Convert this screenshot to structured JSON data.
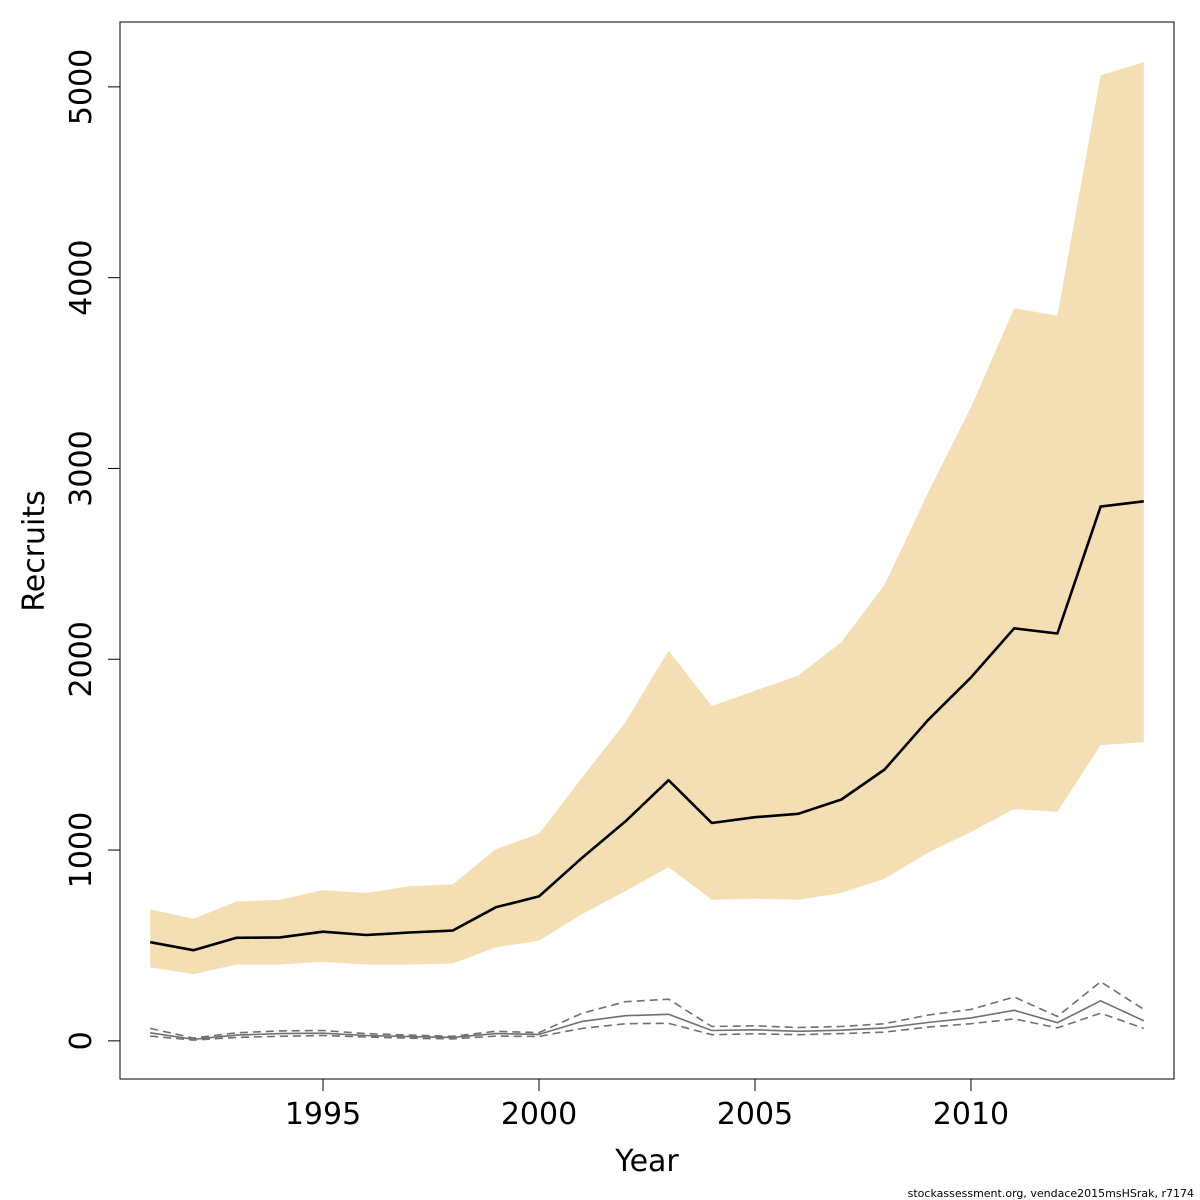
{
  "chart_data": {
    "type": "line",
    "xlabel": "Year",
    "ylabel": "Recruits",
    "xlim": [
      1990.3,
      2014.7
    ],
    "ylim": [
      -200,
      5340
    ],
    "x_ticks": [
      1995,
      2000,
      2005,
      2010
    ],
    "y_ticks": [
      0,
      1000,
      2000,
      3000,
      4000,
      5000
    ],
    "grid": false,
    "legend": "none",
    "x": [
      1991,
      1992,
      1993,
      1994,
      1995,
      1996,
      1997,
      1998,
      1999,
      2000,
      2001,
      2002,
      2003,
      2004,
      2005,
      2006,
      2007,
      2008,
      2009,
      2010,
      2011,
      2012,
      2013,
      2014
    ],
    "band": {
      "color": "#f4deb3",
      "upper": [
        690,
        640,
        730,
        740,
        790,
        775,
        810,
        820,
        1005,
        1085,
        1380,
        1670,
        2045,
        1755,
        1835,
        1915,
        2090,
        2390,
        2870,
        3320,
        3840,
        3800,
        5060,
        5130
      ],
      "lower": [
        385,
        350,
        400,
        400,
        415,
        400,
        400,
        405,
        490,
        525,
        665,
        785,
        910,
        740,
        745,
        740,
        775,
        850,
        985,
        1095,
        1215,
        1200,
        1550,
        1565
      ]
    },
    "series": [
      {
        "style": "solid",
        "color": "#000000",
        "values": [
          517,
          475,
          540,
          542,
          572,
          555,
          568,
          578,
          700,
          757,
          960,
          1150,
          1366,
          1142,
          1172,
          1190,
          1265,
          1422,
          1680,
          1905,
          2162,
          2135,
          2800,
          2828
        ]
      },
      {
        "style": "solid",
        "color": "#707070",
        "values": [
          42,
          8,
          30,
          38,
          40,
          28,
          22,
          18,
          38,
          34,
          102,
          132,
          139,
          54,
          58,
          50,
          56,
          68,
          96,
          120,
          160,
          95,
          210,
          105
        ]
      },
      {
        "style": "dashed",
        "color": "#707070",
        "values": [
          65,
          15,
          42,
          52,
          54,
          38,
          30,
          24,
          50,
          43,
          145,
          205,
          218,
          75,
          79,
          70,
          75,
          90,
          135,
          165,
          230,
          128,
          310,
          165
        ]
      },
      {
        "style": "dashed",
        "color": "#707070",
        "values": [
          25,
          4,
          18,
          24,
          28,
          20,
          14,
          10,
          25,
          23,
          65,
          90,
          92,
          32,
          37,
          32,
          38,
          46,
          72,
          90,
          115,
          68,
          145,
          65
        ]
      }
    ]
  },
  "credit": "stockassessment.org, vendace2015msHSrak, r7174"
}
